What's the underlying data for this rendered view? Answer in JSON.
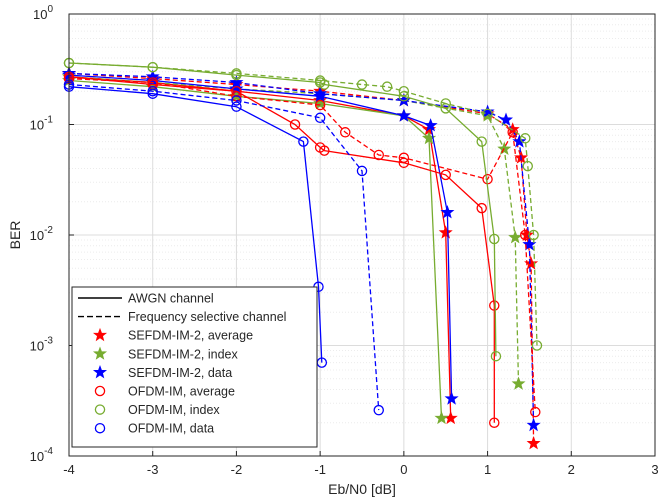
{
  "chart_data": {
    "type": "line",
    "xlabel": "Eb/N0 [dB]",
    "ylabel": "BER",
    "xlim": [
      -4,
      3
    ],
    "ylim": [
      0.0001,
      1
    ],
    "yscale": "log",
    "grid": true,
    "xticks": [
      "-4",
      "-3",
      "-2",
      "-1",
      "0",
      "1",
      "2",
      "3"
    ],
    "yticks": [
      {
        "base": "10",
        "exp": "-4",
        "value": 0.0001
      },
      {
        "base": "10",
        "exp": "-3",
        "value": 0.001
      },
      {
        "base": "10",
        "exp": "-2",
        "value": 0.01
      },
      {
        "base": "10",
        "exp": "-1",
        "value": 0.1
      },
      {
        "base": "10",
        "exp": "0",
        "value": 1
      }
    ],
    "legend_position": "bottom-left",
    "legend": [
      {
        "label": "AWGN channel",
        "kind": "solid"
      },
      {
        "label": "Frequency selective channel",
        "kind": "dashed"
      },
      {
        "label": "SEFDM-IM-2, average",
        "kind": "star",
        "color": "#ff0000"
      },
      {
        "label": "SEFDM-IM-2, index",
        "kind": "star",
        "color": "#77ac30"
      },
      {
        "label": "SEFDM-IM-2, data",
        "kind": "star",
        "color": "#0000ff"
      },
      {
        "label": "OFDM-IM, average",
        "kind": "circle",
        "color": "#ff0000"
      },
      {
        "label": "OFDM-IM, index",
        "kind": "circle",
        "color": "#77ac30"
      },
      {
        "label": "OFDM-IM, data",
        "kind": "circle",
        "color": "#0000ff"
      }
    ],
    "series": [
      {
        "group": "SEFDM-IM-2, average AWGN",
        "color": "#ff0000",
        "marker": "star",
        "dash": false,
        "points": [
          [
            -4,
            0.27
          ],
          [
            -3,
            0.24
          ],
          [
            -2,
            0.2
          ],
          [
            -1,
            0.165
          ],
          [
            0,
            0.12
          ],
          [
            0.3,
            0.09
          ],
          [
            0.5,
            0.0105
          ],
          [
            0.56,
            0.00022
          ]
        ]
      },
      {
        "group": "SEFDM-IM-2, average FS",
        "color": "#ff0000",
        "marker": "star",
        "dash": true,
        "points": [
          [
            -4,
            0.29
          ],
          [
            -3,
            0.26
          ],
          [
            -2,
            0.23
          ],
          [
            -1,
            0.2
          ],
          [
            0,
            0.165
          ],
          [
            1,
            0.125
          ],
          [
            1.3,
            0.09
          ],
          [
            1.4,
            0.05
          ],
          [
            1.47,
            0.01
          ],
          [
            1.52,
            0.0055
          ],
          [
            1.55,
            0.00013
          ]
        ]
      },
      {
        "group": "SEFDM-IM-2, index AWGN",
        "color": "#77ac30",
        "marker": "star",
        "dash": false,
        "points": [
          [
            -4,
            0.25
          ],
          [
            -3,
            0.22
          ],
          [
            -2,
            0.18
          ],
          [
            -1,
            0.155
          ],
          [
            0,
            0.12
          ],
          [
            0.3,
            0.075
          ],
          [
            0.45,
            0.00022
          ]
        ]
      },
      {
        "group": "SEFDM-IM-2, index FS",
        "color": "#77ac30",
        "marker": "star",
        "dash": true,
        "points": [
          [
            -4,
            0.27
          ],
          [
            -3,
            0.24
          ],
          [
            -2,
            0.21
          ],
          [
            -1,
            0.19
          ],
          [
            0,
            0.165
          ],
          [
            1,
            0.12
          ],
          [
            1.2,
            0.06
          ],
          [
            1.33,
            0.0095
          ],
          [
            1.37,
            0.00045
          ]
        ]
      },
      {
        "group": "SEFDM-IM-2, data AWGN",
        "color": "#0000ff",
        "marker": "star",
        "dash": false,
        "points": [
          [
            -4,
            0.28
          ],
          [
            -3,
            0.25
          ],
          [
            -2,
            0.21
          ],
          [
            -1,
            0.18
          ],
          [
            0,
            0.12
          ],
          [
            0.32,
            0.098
          ],
          [
            0.52,
            0.016
          ],
          [
            0.57,
            0.00033
          ]
        ]
      },
      {
        "group": "SEFDM-IM-2, data FS",
        "color": "#0000ff",
        "marker": "star",
        "dash": true,
        "points": [
          [
            -4,
            0.29
          ],
          [
            -3,
            0.27
          ],
          [
            -2,
            0.24
          ],
          [
            -1,
            0.19
          ],
          [
            0,
            0.165
          ],
          [
            1,
            0.13
          ],
          [
            1.22,
            0.11
          ],
          [
            1.38,
            0.07
          ],
          [
            1.5,
            0.0082
          ],
          [
            1.55,
            0.00019
          ]
        ]
      },
      {
        "group": "OFDM-IM, average AWGN",
        "color": "#ff0000",
        "marker": "circle",
        "dash": false,
        "points": [
          [
            -4,
            0.27
          ],
          [
            -3,
            0.23
          ],
          [
            -2,
            0.2
          ],
          [
            -1.3,
            0.1
          ],
          [
            -1,
            0.062
          ],
          [
            -0.95,
            0.058
          ],
          [
            0,
            0.045
          ],
          [
            0.5,
            0.035
          ],
          [
            0.93,
            0.0175
          ],
          [
            1.08,
            0.0023
          ],
          [
            1.08,
            0.0002
          ]
        ]
      },
      {
        "group": "OFDM-IM, average FS",
        "color": "#ff0000",
        "marker": "circle",
        "dash": true,
        "points": [
          [
            -4,
            0.26
          ],
          [
            -3,
            0.24
          ],
          [
            -2,
            0.18
          ],
          [
            -1,
            0.15
          ],
          [
            -0.7,
            0.085
          ],
          [
            -0.3,
            0.053
          ],
          [
            0,
            0.05
          ],
          [
            1,
            0.032
          ],
          [
            1.3,
            0.085
          ],
          [
            1.45,
            0.01
          ],
          [
            1.57,
            0.00025
          ]
        ]
      },
      {
        "group": "OFDM-IM, index AWGN",
        "color": "#77ac30",
        "marker": "circle",
        "dash": false,
        "points": [
          [
            -4,
            0.36
          ],
          [
            -3,
            0.33
          ],
          [
            -2,
            0.28
          ],
          [
            -1,
            0.24
          ],
          [
            -0.95,
            0.23
          ],
          [
            0,
            0.18
          ],
          [
            0.5,
            0.14
          ],
          [
            0.93,
            0.07
          ],
          [
            1.08,
            0.0092
          ],
          [
            1.1,
            0.0008
          ]
        ]
      },
      {
        "group": "OFDM-IM, index FS",
        "color": "#77ac30",
        "marker": "circle",
        "dash": true,
        "points": [
          [
            -4,
            0.36
          ],
          [
            -3,
            0.33
          ],
          [
            -2,
            0.29
          ],
          [
            -1,
            0.25
          ],
          [
            -0.5,
            0.23
          ],
          [
            -0.2,
            0.22
          ],
          [
            0,
            0.2
          ],
          [
            0.5,
            0.155
          ],
          [
            1,
            0.125
          ],
          [
            1.45,
            0.075
          ],
          [
            1.48,
            0.042
          ],
          [
            1.55,
            0.01
          ],
          [
            1.59,
            0.001
          ]
        ]
      },
      {
        "group": "OFDM-IM, data AWGN",
        "color": "#0000ff",
        "marker": "circle",
        "dash": false,
        "points": [
          [
            -4,
            0.22
          ],
          [
            -3,
            0.19
          ],
          [
            -2,
            0.145
          ],
          [
            -1.2,
            0.07
          ],
          [
            -1.02,
            0.0034
          ],
          [
            -0.98,
            0.0007
          ]
        ]
      },
      {
        "group": "OFDM-IM, data FS",
        "color": "#0000ff",
        "marker": "circle",
        "dash": true,
        "points": [
          [
            -4,
            0.23
          ],
          [
            -3,
            0.2
          ],
          [
            -2,
            0.165
          ],
          [
            -1,
            0.115
          ],
          [
            -0.5,
            0.038
          ],
          [
            -0.3,
            0.00026
          ]
        ]
      }
    ]
  }
}
